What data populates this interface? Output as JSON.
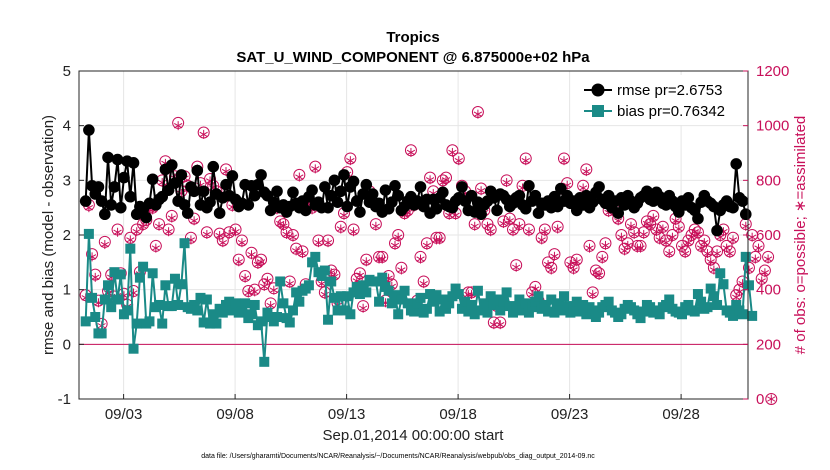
{
  "chart_data": {
    "type": "line",
    "title": "Tropics",
    "subtitle": "SAT_U_WIND_COMPONENT @ 6.875000e+02 hPa",
    "xlabel": "Sep.01,2014 00:00:00 start",
    "ylabel": "rmse and bias (model - observation)",
    "ylabel_right": "# of obs: o=possible; ∗=assimilated",
    "footnote": "data file: /Users/gharamti/Documents/NCAR/Reanalysis/~/Documents/NCAR/Reanalysis/webpub/obs_diag_output_2014-09.nc",
    "xlim": [
      1.0,
      31.0
    ],
    "ylim": [
      -1,
      5
    ],
    "ylim_right": [
      0,
      1200
    ],
    "x_tick_positions": [
      3,
      8,
      13,
      18,
      23,
      28
    ],
    "x_tick_labels": [
      "09/03",
      "09/08",
      "09/13",
      "09/18",
      "09/23",
      "09/28"
    ],
    "y_ticks": [
      -1,
      0,
      1,
      2,
      3,
      4,
      5
    ],
    "y_tick_labels": [
      "-1",
      "0",
      "1",
      "2",
      "3",
      "4",
      "5"
    ],
    "y_right_ticks": [
      0,
      200,
      400,
      600,
      800,
      1000,
      1200
    ],
    "y_right_tick_labels": [
      "0",
      "200",
      "400",
      "600",
      "800",
      "1000",
      "1200"
    ],
    "grid": true,
    "zero_line": 0,
    "legend_position": "top-right",
    "colors": {
      "rmse": "#000000",
      "bias": "#1a8a87",
      "obs": "#c8105a",
      "zero": "#c8105a",
      "grid": "#e6e6e6"
    },
    "series": [
      {
        "name": "rmse pr=2.6753",
        "marker": "circle",
        "values": [
          2.62,
          3.92,
          2.9,
          2.75,
          2.88,
          2.62,
          2.38,
          3.42,
          2.55,
          2.88,
          3.38,
          2.5,
          3.05,
          3.35,
          2.7,
          3.32,
          2.38,
          2.52,
          2.48,
          2.32,
          2.58,
          3.02,
          2.55,
          2.65,
          2.7,
          3.2,
          2.82,
          3.28,
          2.95,
          2.62,
          3.1,
          2.55,
          2.4,
          2.88,
          2.8,
          3.18,
          2.55,
          2.8,
          2.5,
          2.6,
          3.25,
          2.75,
          2.4,
          2.68,
          2.92,
          2.72,
          3.08,
          2.65,
          2.52,
          2.58,
          2.92,
          2.55,
          2.9,
          2.72,
          2.92,
          3.1,
          2.78,
          2.72,
          2.45,
          2.6,
          2.8,
          2.5,
          2.55,
          2.42,
          2.52,
          2.78,
          2.58,
          2.5,
          2.62,
          2.45,
          2.7,
          2.82,
          2.55,
          2.6,
          2.5,
          2.88,
          2.5,
          2.72,
          3.0,
          2.6,
          2.8,
          3.1,
          2.52,
          2.88,
          2.98,
          2.62,
          2.42,
          2.75,
          2.92,
          2.6,
          2.75,
          2.52,
          2.58,
          2.42,
          2.82,
          2.48,
          2.6,
          2.9,
          2.72,
          2.45,
          2.52,
          2.62,
          2.7,
          2.55,
          2.62,
          2.88,
          2.52,
          2.65,
          2.4,
          2.65,
          2.48,
          2.68,
          2.78,
          2.55,
          2.52,
          2.5,
          2.62,
          2.68,
          2.88,
          2.62,
          2.45,
          2.72,
          2.42,
          2.6,
          2.38,
          2.55,
          2.62,
          2.8,
          2.68,
          2.45,
          2.75,
          2.72,
          2.65,
          2.52,
          2.58,
          2.68,
          2.72,
          2.55,
          2.48,
          2.9,
          2.62,
          2.72,
          2.4,
          2.58,
          2.55,
          2.62,
          2.5,
          2.7,
          2.52,
          2.85,
          2.62,
          2.72,
          2.58,
          2.62,
          2.45,
          2.68,
          2.55,
          2.72,
          2.5,
          2.6,
          2.78,
          2.88,
          2.65,
          2.58,
          2.72,
          2.5,
          2.62,
          2.4,
          2.68,
          2.55,
          2.72,
          2.62,
          2.5,
          2.58,
          2.68,
          2.72,
          2.8,
          2.65,
          2.62,
          2.78,
          2.7,
          2.58,
          2.55,
          2.72,
          2.62,
          2.52,
          2.42,
          2.62,
          2.55,
          2.68,
          2.5,
          2.45,
          2.3,
          2.6,
          2.72,
          2.62,
          2.58,
          2.52,
          2.08,
          2.45,
          2.55,
          2.62,
          2.52,
          2.5,
          3.3,
          2.68,
          2.62,
          2.38
        ]
      },
      {
        "name": "bias pr=0.76342",
        "marker": "square",
        "values": [
          0.42,
          2.02,
          0.85,
          0.5,
          0.2,
          0.2,
          0.82,
          1.08,
          0.68,
          1.32,
          0.82,
          1.28,
          0.55,
          0.62,
          1.75,
          -0.08,
          0.38,
          1.22,
          1.42,
          0.38,
          0.42,
          1.3,
          0.68,
          0.72,
          0.38,
          1.08,
          0.7,
          0.7,
          1.2,
          0.72,
          1.1,
          1.85,
          0.68,
          0.65,
          0.72,
          0.62,
          0.85,
          0.4,
          0.82,
          0.38,
          0.55,
          0.38,
          0.65,
          0.58,
          0.72,
          0.78,
          0.62,
          0.75,
          0.58,
          0.6,
          0.75,
          0.48,
          0.55,
          0.72,
          0.35,
          0.42,
          -0.32,
          0.58,
          0.5,
          0.42,
          0.5,
          1.15,
          0.75,
          0.48,
          0.4,
          0.62,
          0.95,
          0.78,
          0.98,
          1.02,
          1.08,
          1.5,
          1.6,
          1.32,
          1.25,
          1.35,
          0.45,
          1.15,
          0.85,
          0.62,
          0.88,
          0.62,
          0.88,
          0.55,
          0.95,
          1.05,
          0.92,
          1.08,
          0.95,
          1.18,
          1.15,
          1.15,
          0.78,
          1.22,
          1.05,
          0.98,
          0.75,
          0.9,
          0.55,
          0.82,
          0.98,
          0.75,
          0.62,
          0.6,
          0.75,
          0.85,
          0.58,
          0.65,
          0.92,
          0.78,
          0.9,
          0.6,
          0.82,
          0.65,
          0.75,
          0.88,
          1.02,
          0.92,
          0.65,
          0.78,
          0.6,
          0.72,
          0.55,
          0.98,
          0.62,
          0.75,
          0.58,
          0.88,
          0.72,
          0.82,
          0.62,
          0.78,
          0.95,
          0.7,
          0.58,
          0.68,
          0.82,
          0.62,
          0.75,
          0.58,
          0.68,
          0.78,
          0.88,
          0.65,
          0.72,
          0.6,
          0.82,
          0.58,
          0.75,
          0.62,
          0.88,
          0.7,
          0.58,
          0.65,
          0.78,
          0.6,
          0.72,
          0.55,
          0.68,
          0.62,
          0.5,
          0.58,
          0.68,
          0.72,
          0.78,
          0.62,
          0.58,
          0.5,
          0.55,
          0.65,
          0.72,
          0.68,
          0.62,
          0.55,
          0.48,
          0.6,
          0.72,
          0.68,
          0.58,
          0.62,
          0.55,
          0.68,
          0.72,
          0.82,
          0.65,
          0.6,
          0.58,
          0.55,
          0.68,
          0.72,
          0.62,
          0.6,
          0.92,
          0.78,
          0.65,
          0.68,
          1.02,
          0.88,
          0.72,
          1.3,
          1.1,
          0.62,
          0.58,
          0.52,
          0.72,
          0.62,
          0.55,
          1.6,
          1.08,
          0.52
        ]
      },
      {
        "name": "obs possible",
        "marker": "circle-open",
        "axis": "right",
        "values": [
          380,
          710,
          530,
          455,
          360,
          275,
          575,
          395,
          455,
          375,
          620,
          460,
          385,
          345,
          590,
          395,
          620,
          465,
          640,
          655,
          700,
          700,
          560,
          640,
          800,
          870,
          620,
          670,
          815,
          1010,
          760,
          815,
          780,
          590,
          660,
          850,
          790,
          975,
          610,
          805,
          780,
          760,
          605,
          580,
          840,
          610,
          710,
          620,
          510,
          580,
          450,
          395,
          535,
          400,
          500,
          510,
          420,
          440,
          350,
          405,
          700,
          650,
          640,
          610,
          430,
          600,
          550,
          820,
          540,
          420,
          730,
          700,
          850,
          580,
          430,
          390,
          580,
          470,
          455,
          350,
          630,
          680,
          830,
          880,
          620,
          440,
          460,
          340,
          510,
          760,
          720,
          640,
          520,
          520,
          360,
          450,
          420,
          570,
          600,
          480,
          680,
          690,
          910,
          710,
          360,
          520,
          430,
          570,
          810,
          760,
          590,
          590,
          800,
          810,
          680,
          910,
          680,
          880,
          780,
          760,
          390,
          390,
          640,
          1050,
          770,
          690,
          640,
          620,
          280,
          340,
          280,
          650,
          800,
          660,
          620,
          490,
          640,
          780,
          880,
          620,
          390,
          410,
          360,
          590,
          620,
          500,
          480,
          530,
          630,
          730,
          880,
          790,
          500,
          480,
          510,
          720,
          780,
          840,
          560,
          390,
          470,
          460,
          520,
          570,
          690,
          710,
          690,
          660,
          600,
          550,
          570,
          640,
          610,
          560,
          560,
          610,
          650,
          640,
          670,
          620,
          590,
          630,
          580,
          540,
          600,
          660,
          630,
          560,
          540,
          580,
          600,
          620,
          610,
          560,
          580,
          540,
          510,
          480,
          540,
          600,
          620,
          560,
          540,
          590,
          380,
          400,
          430,
          640,
          480,
          600,
          520,
          560,
          440,
          470,
          520,
          0
        ]
      },
      {
        "name": "obs assimilated",
        "marker": "asterisk",
        "axis": "right",
        "values": [
          370,
          700,
          520,
          445,
          352,
          268,
          565,
          388,
          445,
          368,
          610,
          452,
          378,
          338,
          582,
          388,
          612,
          458,
          632,
          648,
          692,
          692,
          552,
          632,
          792,
          862,
          612,
          662,
          808,
          1000,
          752,
          808,
          772,
          582,
          652,
          842,
          782,
          968,
          602,
          798,
          772,
          752,
          598,
          572,
          832,
          602,
          702,
          612,
          502,
          572,
          442,
          388,
          528,
          392,
          492,
          502,
          412,
          432,
          342,
          398,
          692,
          642,
          632,
          602,
          422,
          592,
          542,
          812,
          532,
          412,
          722,
          692,
          842,
          572,
          422,
          382,
          572,
          462,
          448,
          342,
          622,
          672,
          822,
          872,
          612,
          432,
          452,
          332,
          502,
          752,
          712,
          632,
          512,
          512,
          352,
          442,
          412,
          562,
          592,
          472,
          672,
          682,
          902,
          702,
          352,
          512,
          422,
          562,
          802,
          752,
          582,
          582,
          792,
          802,
          672,
          902,
          672,
          872,
          772,
          752,
          382,
          382,
          632,
          1042,
          762,
          682,
          632,
          612,
          272,
          332,
          272,
          642,
          792,
          652,
          612,
          482,
          632,
          772,
          872,
          612,
          382,
          402,
          352,
          582,
          612,
          492,
          472,
          522,
          622,
          722,
          872,
          782,
          492,
          472,
          502,
          712,
          772,
          832,
          552,
          382,
          462,
          452,
          512,
          562,
          682,
          702,
          682,
          652,
          592,
          542,
          562,
          632,
          602,
          552,
          552,
          602,
          642,
          632,
          662,
          612,
          582,
          622,
          572,
          532,
          592,
          652,
          622,
          552,
          532,
          572,
          592,
          612,
          602,
          552,
          572,
          532,
          502,
          472,
          532,
          592,
          612,
          552,
          532,
          582,
          372,
          392,
          422,
          632,
          472,
          592,
          512,
          552,
          432,
          462,
          512,
          0
        ]
      }
    ]
  }
}
